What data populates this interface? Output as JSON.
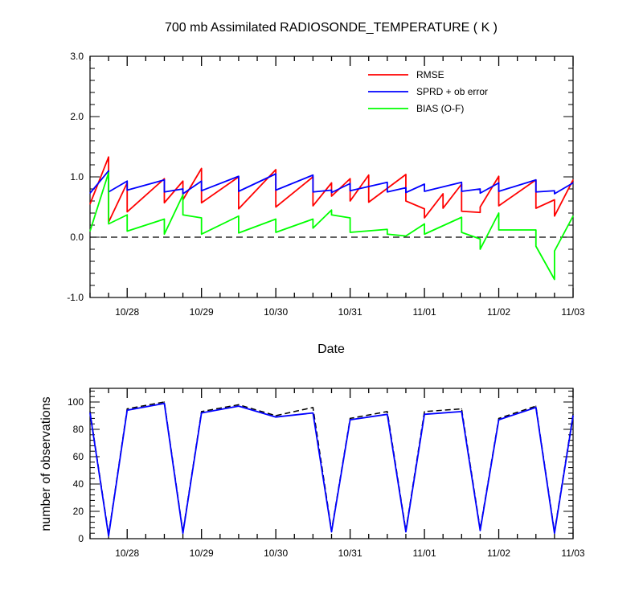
{
  "chart_data": [
    {
      "type": "line",
      "title": "700 mb Assimilated RADIOSONDE_TEMPERATURE ( K )",
      "xlabel": "Date",
      "ylabel": "",
      "xlim": [
        0,
        6.5
      ],
      "ylim": [
        -1.0,
        3.0
      ],
      "yticks": [
        -1.0,
        0.0,
        1.0,
        2.0,
        3.0
      ],
      "ytick_labels": [
        "-1.0",
        "0.0",
        "1.0",
        "2.0",
        "3.0"
      ],
      "xticks": [
        0.5,
        1.5,
        2.5,
        3.5,
        4.5,
        5.5,
        6.5
      ],
      "xtick_labels": [
        "10/28",
        "10/29",
        "10/30",
        "10/31",
        "11/01",
        "11/02",
        "11/03"
      ],
      "reference_line": {
        "y": 0.0,
        "style": "dashed"
      },
      "legend_position": "top-right",
      "series": [
        {
          "name": "RMSE",
          "color": "#ff0000",
          "points": [
            [
              0.0,
              0.55
            ],
            [
              0.25,
              1.33
            ],
            [
              0.25,
              0.25
            ],
            [
              0.5,
              0.9
            ],
            [
              0.5,
              0.42
            ],
            [
              1.0,
              0.97
            ],
            [
              1.0,
              0.57
            ],
            [
              1.25,
              0.93
            ],
            [
              1.25,
              0.62
            ],
            [
              1.5,
              1.14
            ],
            [
              1.5,
              0.57
            ],
            [
              2.0,
              1.0
            ],
            [
              2.0,
              0.47
            ],
            [
              2.5,
              1.12
            ],
            [
              2.5,
              0.5
            ],
            [
              3.0,
              1.0
            ],
            [
              3.0,
              0.52
            ],
            [
              3.25,
              0.9
            ],
            [
              3.25,
              0.68
            ],
            [
              3.5,
              0.97
            ],
            [
              3.5,
              0.6
            ],
            [
              3.75,
              1.03
            ],
            [
              3.75,
              0.58
            ],
            [
              4.25,
              1.04
            ],
            [
              4.25,
              0.6
            ],
            [
              4.5,
              0.47
            ],
            [
              4.5,
              0.32
            ],
            [
              4.75,
              0.72
            ],
            [
              4.75,
              0.48
            ],
            [
              5.0,
              0.88
            ],
            [
              5.0,
              0.43
            ],
            [
              5.25,
              0.41
            ],
            [
              5.25,
              0.5
            ],
            [
              5.5,
              1.01
            ],
            [
              5.5,
              0.52
            ],
            [
              6.0,
              0.95
            ],
            [
              6.0,
              0.48
            ],
            [
              6.25,
              0.62
            ],
            [
              6.25,
              0.35
            ],
            [
              6.5,
              0.95
            ]
          ]
        },
        {
          "name": "SPRD + ob error",
          "color": "#0000ff",
          "points": [
            [
              0.0,
              0.73
            ],
            [
              0.25,
              1.1
            ],
            [
              0.25,
              0.75
            ],
            [
              0.5,
              0.93
            ],
            [
              0.5,
              0.78
            ],
            [
              1.0,
              0.95
            ],
            [
              1.0,
              0.75
            ],
            [
              1.25,
              0.8
            ],
            [
              1.25,
              0.72
            ],
            [
              1.5,
              0.93
            ],
            [
              1.5,
              0.77
            ],
            [
              2.0,
              1.01
            ],
            [
              2.0,
              0.76
            ],
            [
              2.5,
              1.05
            ],
            [
              2.5,
              0.78
            ],
            [
              3.0,
              1.03
            ],
            [
              3.0,
              0.75
            ],
            [
              3.25,
              0.78
            ],
            [
              3.25,
              0.74
            ],
            [
              3.5,
              0.89
            ],
            [
              3.5,
              0.77
            ],
            [
              4.0,
              0.91
            ],
            [
              4.0,
              0.75
            ],
            [
              4.25,
              0.82
            ],
            [
              4.25,
              0.74
            ],
            [
              4.5,
              0.88
            ],
            [
              4.5,
              0.76
            ],
            [
              5.0,
              0.91
            ],
            [
              5.0,
              0.76
            ],
            [
              5.25,
              0.8
            ],
            [
              5.25,
              0.73
            ],
            [
              5.5,
              0.9
            ],
            [
              5.5,
              0.76
            ],
            [
              6.0,
              0.95
            ],
            [
              6.0,
              0.75
            ],
            [
              6.25,
              0.77
            ],
            [
              6.25,
              0.72
            ],
            [
              6.5,
              0.9
            ]
          ]
        },
        {
          "name": "BIAS (O-F)",
          "color": "#00ff00",
          "points": [
            [
              0.0,
              0.1
            ],
            [
              0.25,
              1.07
            ],
            [
              0.25,
              0.22
            ],
            [
              0.5,
              0.37
            ],
            [
              0.5,
              0.1
            ],
            [
              1.0,
              0.3
            ],
            [
              1.0,
              0.05
            ],
            [
              1.25,
              0.7
            ],
            [
              1.25,
              0.37
            ],
            [
              1.5,
              0.32
            ],
            [
              1.5,
              0.05
            ],
            [
              2.0,
              0.35
            ],
            [
              2.0,
              0.07
            ],
            [
              2.5,
              0.3
            ],
            [
              2.5,
              0.08
            ],
            [
              3.0,
              0.3
            ],
            [
              3.0,
              0.15
            ],
            [
              3.25,
              0.45
            ],
            [
              3.25,
              0.37
            ],
            [
              3.5,
              0.32
            ],
            [
              3.5,
              0.08
            ],
            [
              4.0,
              0.13
            ],
            [
              4.0,
              0.05
            ],
            [
              4.25,
              0.02
            ],
            [
              4.25,
              0.02
            ],
            [
              4.5,
              0.22
            ],
            [
              4.5,
              0.05
            ],
            [
              5.0,
              0.33
            ],
            [
              5.0,
              0.08
            ],
            [
              5.25,
              -0.03
            ],
            [
              5.25,
              -0.2
            ],
            [
              5.5,
              0.4
            ],
            [
              5.5,
              0.12
            ],
            [
              6.0,
              0.12
            ],
            [
              6.0,
              -0.15
            ],
            [
              6.25,
              -0.7
            ],
            [
              6.25,
              -0.23
            ],
            [
              6.5,
              0.35
            ]
          ]
        }
      ]
    },
    {
      "type": "line",
      "title": "",
      "xlabel": "",
      "ylabel": "number of observations",
      "xlim": [
        0,
        6.5
      ],
      "ylim": [
        0,
        110
      ],
      "yticks": [
        0,
        20,
        40,
        60,
        80,
        100
      ],
      "ytick_labels": [
        "0",
        "20",
        "40",
        "60",
        "80",
        "100"
      ],
      "xticks": [
        0.5,
        1.5,
        2.5,
        3.5,
        4.5,
        5.5,
        6.5
      ],
      "xtick_labels": [
        "10/28",
        "10/29",
        "10/30",
        "10/31",
        "11/01",
        "11/02",
        "11/03"
      ],
      "series": [
        {
          "color": "#000000",
          "style": "dashed",
          "points": [
            [
              0.0,
              93
            ],
            [
              0.25,
              3
            ],
            [
              0.5,
              95
            ],
            [
              1.0,
              100
            ],
            [
              1.25,
              5
            ],
            [
              1.5,
              93
            ],
            [
              2.0,
              98
            ],
            [
              2.5,
              90
            ],
            [
              3.0,
              96
            ],
            [
              3.25,
              6
            ],
            [
              3.5,
              88
            ],
            [
              4.0,
              93
            ],
            [
              4.25,
              6
            ],
            [
              4.5,
              93
            ],
            [
              5.0,
              95
            ],
            [
              5.25,
              7
            ],
            [
              5.5,
              88
            ],
            [
              6.0,
              97
            ],
            [
              6.25,
              5
            ],
            [
              6.5,
              91
            ]
          ]
        },
        {
          "color": "#0000ff",
          "style": "solid",
          "points": [
            [
              0.0,
              92
            ],
            [
              0.25,
              2
            ],
            [
              0.5,
              94
            ],
            [
              1.0,
              99
            ],
            [
              1.25,
              4
            ],
            [
              1.5,
              92
            ],
            [
              2.0,
              97
            ],
            [
              2.5,
              89
            ],
            [
              3.0,
              92
            ],
            [
              3.25,
              5
            ],
            [
              3.5,
              87
            ],
            [
              4.0,
              91
            ],
            [
              4.25,
              5
            ],
            [
              4.5,
              91
            ],
            [
              5.0,
              93
            ],
            [
              5.25,
              6
            ],
            [
              5.5,
              87
            ],
            [
              6.0,
              96
            ],
            [
              6.25,
              4
            ],
            [
              6.5,
              90
            ]
          ]
        }
      ]
    }
  ]
}
